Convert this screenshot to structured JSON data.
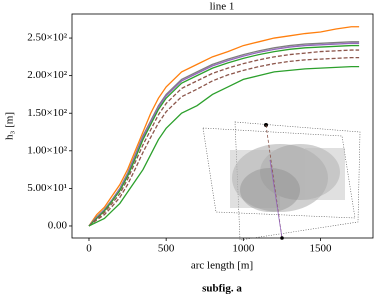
{
  "chart_data": {
    "type": "line",
    "title": "line 1",
    "x_label": "arc length [m]",
    "y_label": "h₃ [m]",
    "caption": "subfig. a",
    "xlim": [
      -110,
      1840
    ],
    "xticks": [
      0,
      500,
      1000,
      1500
    ],
    "ylim": [
      -16,
      282
    ],
    "yticks": [
      {
        "value": 0,
        "label": "0.00"
      },
      {
        "value": 50,
        "label": "5.00×10¹"
      },
      {
        "value": 100,
        "label": "1.00×10²"
      },
      {
        "value": 150,
        "label": "1.50×10²"
      },
      {
        "value": 200,
        "label": "2.00×10²"
      },
      {
        "value": 250,
        "label": "2.50×10²"
      }
    ],
    "x": [
      0,
      50,
      100,
      150,
      200,
      250,
      300,
      350,
      400,
      450,
      500,
      600,
      700,
      800,
      900,
      1000,
      1100,
      1200,
      1300,
      1400,
      1500,
      1600,
      1700,
      1750
    ],
    "series": [
      {
        "color": "#ff7f0e",
        "style": "solid",
        "values": [
          0,
          15,
          25,
          40,
          55,
          75,
          100,
          125,
          150,
          170,
          185,
          205,
          215,
          225,
          232,
          240,
          245,
          250,
          253,
          256,
          258,
          262,
          265,
          265
        ]
      },
      {
        "color": "#7f7f7f",
        "style": "solid",
        "values": [
          0,
          12,
          22,
          35,
          50,
          70,
          95,
          120,
          140,
          160,
          175,
          195,
          205,
          215,
          222,
          228,
          233,
          237,
          240,
          242,
          243,
          244,
          245,
          245
        ]
      },
      {
        "color": "#9467bd",
        "style": "solid",
        "values": [
          0,
          11,
          21,
          34,
          49,
          68,
          93,
          118,
          138,
          158,
          173,
          193,
          203,
          213,
          220,
          226,
          231,
          235,
          238,
          240,
          241,
          242,
          243,
          243
        ]
      },
      {
        "color": "#2ca02c",
        "style": "solid",
        "values": [
          0,
          10,
          20,
          33,
          47,
          66,
          90,
          115,
          135,
          155,
          170,
          190,
          200,
          210,
          217,
          223,
          228,
          232,
          235,
          237,
          238,
          239,
          240,
          240
        ]
      },
      {
        "color": "#8c564b",
        "style": "dashed",
        "values": [
          0,
          9,
          18,
          30,
          43,
          62,
          85,
          108,
          128,
          148,
          163,
          183,
          193,
          203,
          210,
          216,
          221,
          225,
          228,
          230,
          232,
          233,
          234,
          234
        ]
      },
      {
        "color": "#8c564b",
        "style": "dashed",
        "values": [
          0,
          8,
          15,
          26,
          38,
          55,
          76,
          98,
          118,
          137,
          152,
          172,
          182,
          193,
          201,
          207,
          212,
          216,
          219,
          221,
          222,
          223,
          224,
          224
        ]
      },
      {
        "color": "#2ca02c",
        "style": "solid",
        "values": [
          0,
          5,
          10,
          20,
          30,
          45,
          60,
          75,
          95,
          115,
          130,
          150,
          160,
          175,
          185,
          195,
          200,
          205,
          207,
          209,
          210,
          211,
          212,
          212
        ]
      }
    ]
  }
}
